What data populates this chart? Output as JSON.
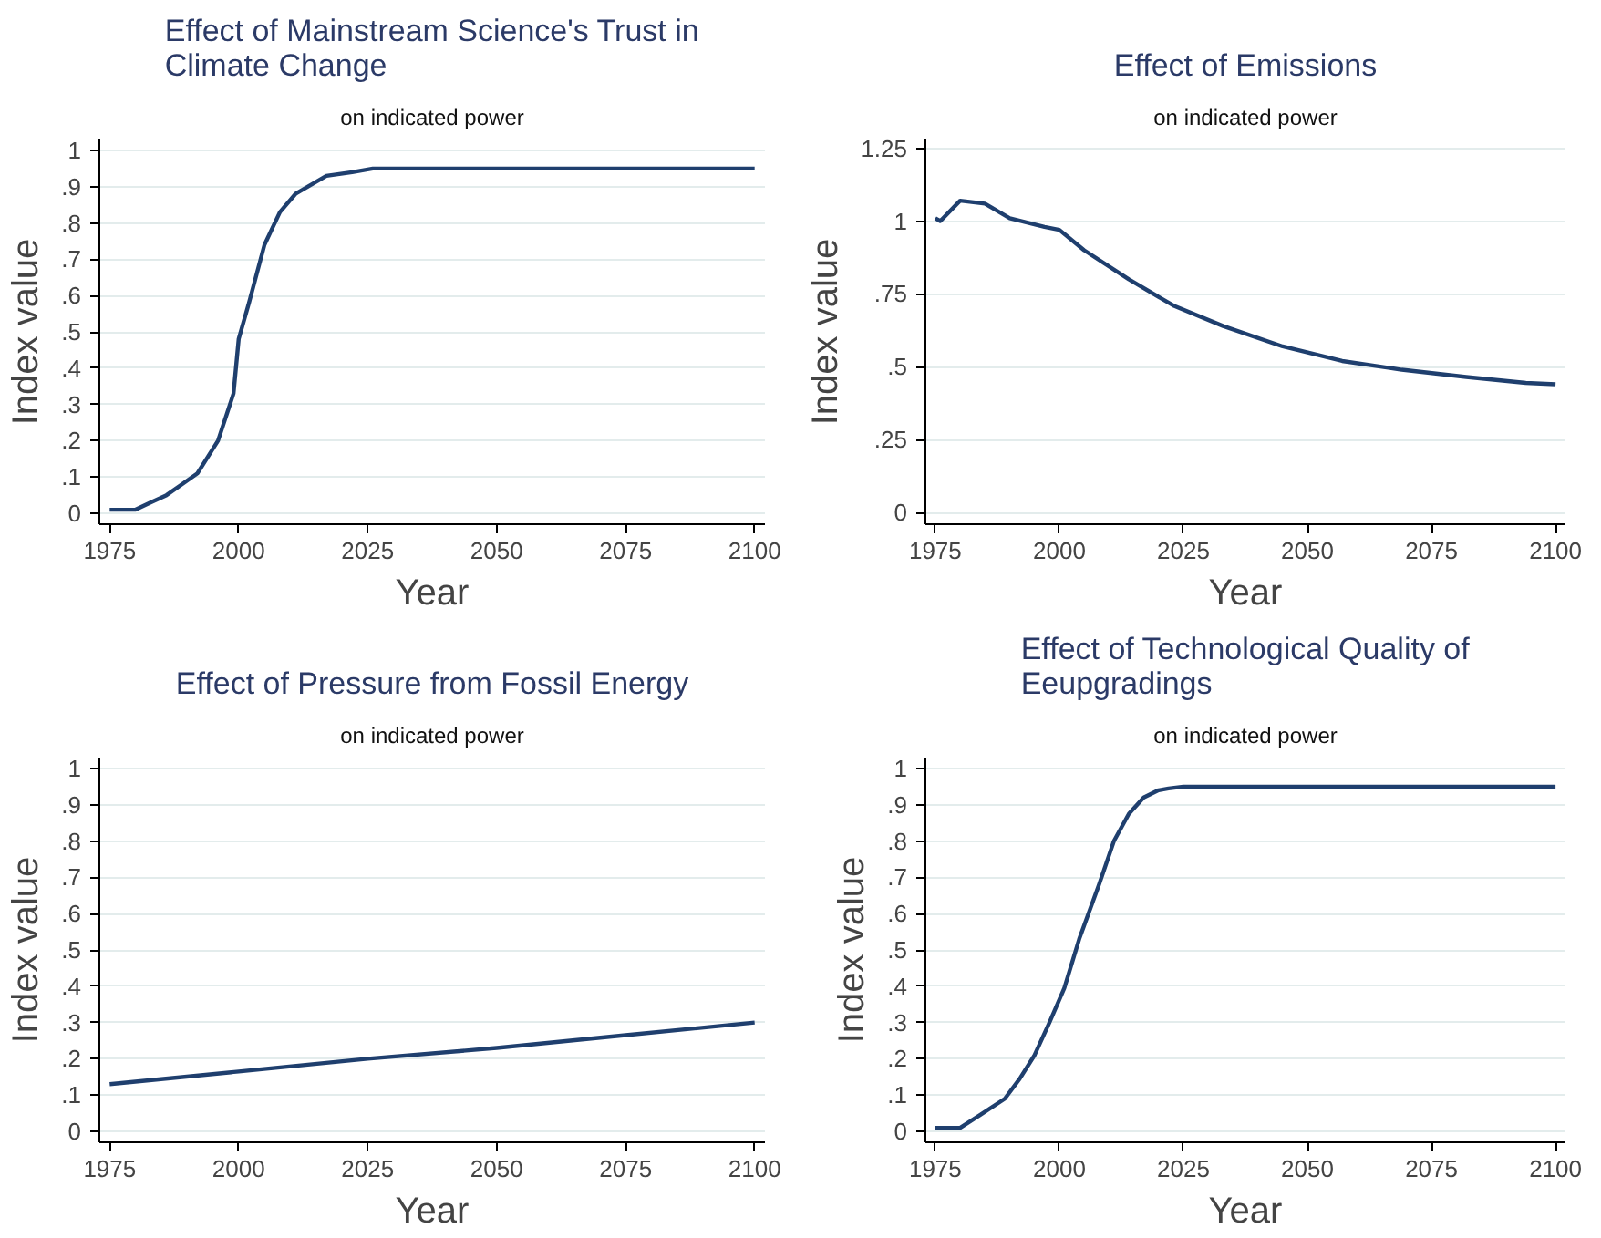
{
  "chart_data": [
    {
      "type": "line",
      "title": "Effect of Mainstream Science's Trust in\nClimate Change",
      "subtitle": "on indicated power",
      "xlabel": "Year",
      "ylabel": "Index value",
      "series": [
        {
          "color": "#1f3f6e",
          "x": [
            1975,
            1980,
            1983,
            1986,
            1989,
            1992,
            1996,
            1999,
            2000,
            2002,
            2005,
            2008,
            2011,
            2017,
            2022,
            2026,
            2100
          ],
          "values": [
            0.01,
            0.01,
            0.03,
            0.05,
            0.08,
            0.11,
            0.2,
            0.33,
            0.48,
            0.58,
            0.74,
            0.83,
            0.88,
            0.93,
            0.94,
            0.95,
            0.95
          ]
        }
      ],
      "xlim": [
        1973,
        2102
      ],
      "ylim": [
        -0.03,
        1.03
      ],
      "xticks": [
        1975,
        2000,
        2025,
        2050,
        2075,
        2100
      ],
      "yticks": [
        0,
        {
          "value": 0.1,
          "label": ".1"
        },
        {
          "value": 0.2,
          "label": ".2"
        },
        {
          "value": 0.3,
          "label": ".3"
        },
        {
          "value": 0.4,
          "label": ".4"
        },
        {
          "value": 0.5,
          "label": ".5"
        },
        {
          "value": 0.6,
          "label": ".6"
        },
        {
          "value": 0.7,
          "label": ".7"
        },
        {
          "value": 0.8,
          "label": ".8"
        },
        {
          "value": 0.9,
          "label": ".9"
        },
        1
      ],
      "grid": "y",
      "marker": "none",
      "line_style": "solid"
    },
    {
      "type": "line",
      "title": "Effect of Emissions",
      "subtitle": "on indicated power",
      "xlabel": "Year",
      "ylabel": "Index value",
      "series": [
        {
          "color": "#1f3f6e",
          "x": [
            1975,
            1976,
            1980,
            1985,
            1990,
            1997,
            2000,
            2005,
            2014,
            2023,
            2033,
            2045,
            2057,
            2069,
            2082,
            2094,
            2100
          ],
          "values": [
            1.01,
            1.0,
            1.07,
            1.06,
            1.01,
            0.98,
            0.97,
            0.9,
            0.8,
            0.71,
            0.64,
            0.57,
            0.52,
            0.49,
            0.465,
            0.445,
            0.44
          ]
        }
      ],
      "xlim": [
        1973,
        2102
      ],
      "ylim": [
        -0.04,
        1.28
      ],
      "xticks": [
        1975,
        2000,
        2025,
        2050,
        2075,
        2100
      ],
      "yticks": [
        0,
        {
          "value": 0.25,
          "label": ".25"
        },
        {
          "value": 0.5,
          "label": ".5"
        },
        {
          "value": 0.75,
          "label": ".75"
        },
        1,
        1.25
      ],
      "grid": "y",
      "marker": "none",
      "line_style": "solid"
    },
    {
      "type": "line",
      "title": "Effect of Pressure from Fossil Energy",
      "subtitle": "on indicated power",
      "xlabel": "Year",
      "ylabel": "Index value",
      "series": [
        {
          "color": "#1f3f6e",
          "x": [
            1975,
            2000,
            2025,
            2050,
            2075,
            2100
          ],
          "values": [
            0.13,
            0.165,
            0.2,
            0.23,
            0.265,
            0.3
          ]
        }
      ],
      "xlim": [
        1973,
        2102
      ],
      "ylim": [
        -0.03,
        1.03
      ],
      "xticks": [
        1975,
        2000,
        2025,
        2050,
        2075,
        2100
      ],
      "yticks": [
        0,
        {
          "value": 0.1,
          "label": ".1"
        },
        {
          "value": 0.2,
          "label": ".2"
        },
        {
          "value": 0.3,
          "label": ".3"
        },
        {
          "value": 0.4,
          "label": ".4"
        },
        {
          "value": 0.5,
          "label": ".5"
        },
        {
          "value": 0.6,
          "label": ".6"
        },
        {
          "value": 0.7,
          "label": ".7"
        },
        {
          "value": 0.8,
          "label": ".8"
        },
        {
          "value": 0.9,
          "label": ".9"
        },
        1
      ],
      "grid": "y",
      "marker": "none",
      "line_style": "solid"
    },
    {
      "type": "line",
      "title": "Effect of Technological Quality of\nEeupgradings",
      "subtitle": "on indicated power",
      "xlabel": "Year",
      "ylabel": "Index value",
      "series": [
        {
          "color": "#1f3f6e",
          "x": [
            1975,
            1980,
            1984,
            1989,
            1992,
            1995,
            1998,
            2001,
            2004,
            2008,
            2011,
            2014,
            2017,
            2020,
            2022,
            2025,
            2100
          ],
          "values": [
            0.01,
            0.01,
            0.045,
            0.09,
            0.145,
            0.21,
            0.3,
            0.395,
            0.53,
            0.68,
            0.8,
            0.875,
            0.92,
            0.94,
            0.945,
            0.95,
            0.95
          ]
        }
      ],
      "xlim": [
        1973,
        2102
      ],
      "ylim": [
        -0.03,
        1.03
      ],
      "xticks": [
        1975,
        2000,
        2025,
        2050,
        2075,
        2100
      ],
      "yticks": [
        0,
        {
          "value": 0.1,
          "label": ".1"
        },
        {
          "value": 0.2,
          "label": ".2"
        },
        {
          "value": 0.3,
          "label": ".3"
        },
        {
          "value": 0.4,
          "label": ".4"
        },
        {
          "value": 0.5,
          "label": ".5"
        },
        {
          "value": 0.6,
          "label": ".6"
        },
        {
          "value": 0.7,
          "label": ".7"
        },
        {
          "value": 0.8,
          "label": ".8"
        },
        {
          "value": 0.9,
          "label": ".9"
        },
        1
      ],
      "grid": "y",
      "marker": "none",
      "line_style": "solid"
    }
  ]
}
